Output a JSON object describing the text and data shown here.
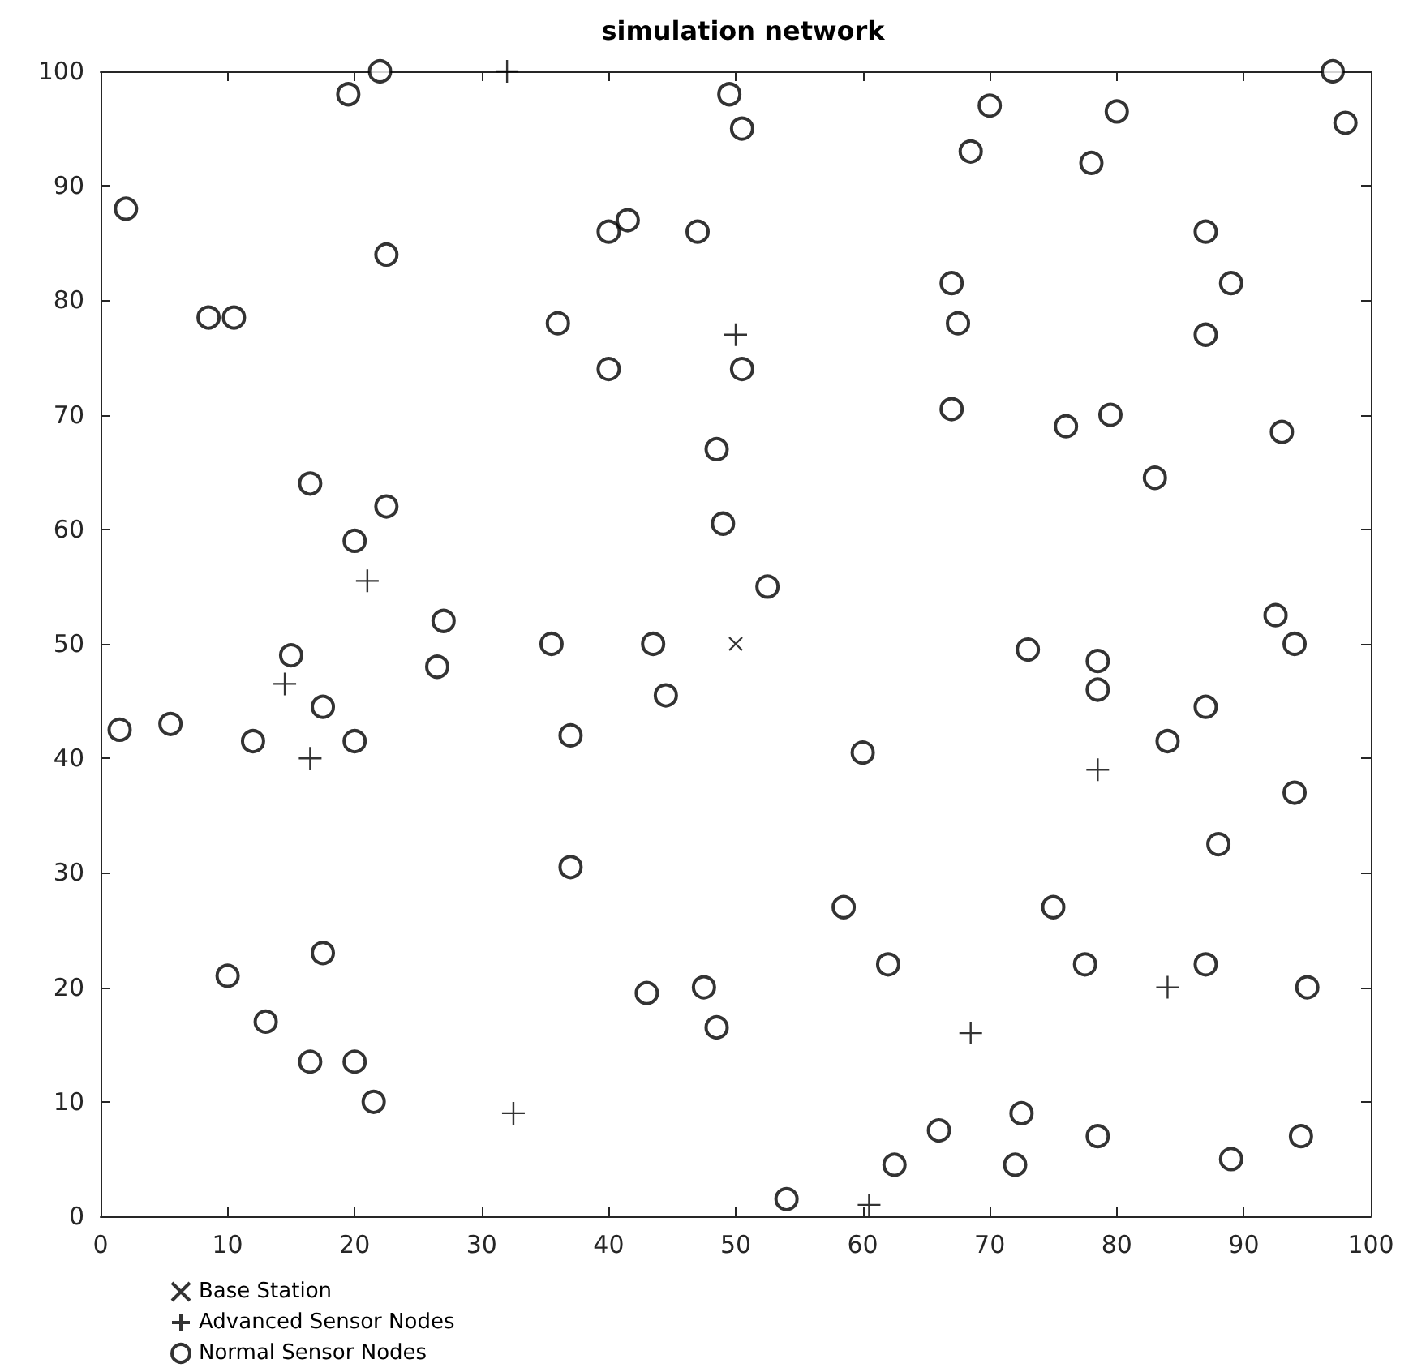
{
  "chart_data": {
    "type": "scatter",
    "title": "simulation network",
    "xlim": [
      0,
      100
    ],
    "ylim": [
      0,
      100
    ],
    "xticks": [
      0,
      10,
      20,
      30,
      40,
      50,
      60,
      70,
      80,
      90,
      100
    ],
    "yticks": [
      0,
      10,
      20,
      30,
      40,
      50,
      60,
      70,
      80,
      90,
      100
    ],
    "grid": false,
    "legend": "bottom left",
    "series": [
      {
        "name": "Base Station",
        "color": "#000000",
        "marker": "x",
        "x": [
          50
        ],
        "values": [
          50
        ]
      },
      {
        "name": "Advanced Sensor Nodes",
        "color": "#000000",
        "marker": "plus",
        "x": [
          32,
          50,
          21,
          14.5,
          16.5,
          32.5,
          60.5,
          68.5,
          78.5,
          84
        ],
        "values": [
          100,
          77,
          55.5,
          46.5,
          40,
          9,
          1,
          16,
          39,
          20
        ]
      },
      {
        "name": "Normal Sensor Nodes",
        "color": "#000000",
        "marker": "circle",
        "x": [
          22,
          19.5,
          49.5,
          50.5,
          2,
          22.5,
          8.5,
          10.5,
          36,
          40,
          41.5,
          47,
          40,
          50.5,
          16.5,
          22.5,
          20,
          48.5,
          49,
          27,
          26.5,
          35.5,
          43.5,
          44.5,
          52.5,
          15,
          17.5,
          1.5,
          5.5,
          12,
          20,
          37,
          37,
          10,
          13,
          17.5,
          16.5,
          20,
          21.5,
          43,
          47.5,
          48.5,
          54,
          60,
          58.5,
          62,
          62.5,
          66,
          72.5,
          72,
          73,
          75,
          77.5,
          78.5,
          78.5,
          78.5,
          84,
          87,
          88,
          87,
          89,
          94.5,
          95,
          94,
          94,
          92.5,
          93,
          83,
          79.5,
          76,
          67,
          67.5,
          67,
          87,
          89,
          87,
          78,
          80,
          70,
          68.5,
          97,
          98
        ],
        "values": [
          100,
          98,
          98,
          95,
          88,
          84,
          78.5,
          78.5,
          78,
          86,
          87,
          86,
          74,
          74,
          64,
          62,
          59,
          67,
          60.5,
          52,
          48,
          50,
          50,
          45.5,
          55,
          49,
          44.5,
          42.5,
          43,
          41.5,
          41.5,
          42,
          30.5,
          21,
          17,
          23,
          13.5,
          13.5,
          10,
          19.5,
          20,
          16.5,
          1.5,
          40.5,
          27,
          22,
          4.5,
          7.5,
          9,
          4.5,
          49.5,
          27,
          22,
          48.5,
          46,
          7,
          41.5,
          44.5,
          32.5,
          22,
          5,
          7,
          20,
          37,
          50,
          52.5,
          68.5,
          64.5,
          70,
          69,
          70.5,
          78,
          81.5,
          77,
          81.5,
          86,
          92,
          96.5,
          97,
          93,
          100,
          95.5
        ]
      }
    ]
  }
}
